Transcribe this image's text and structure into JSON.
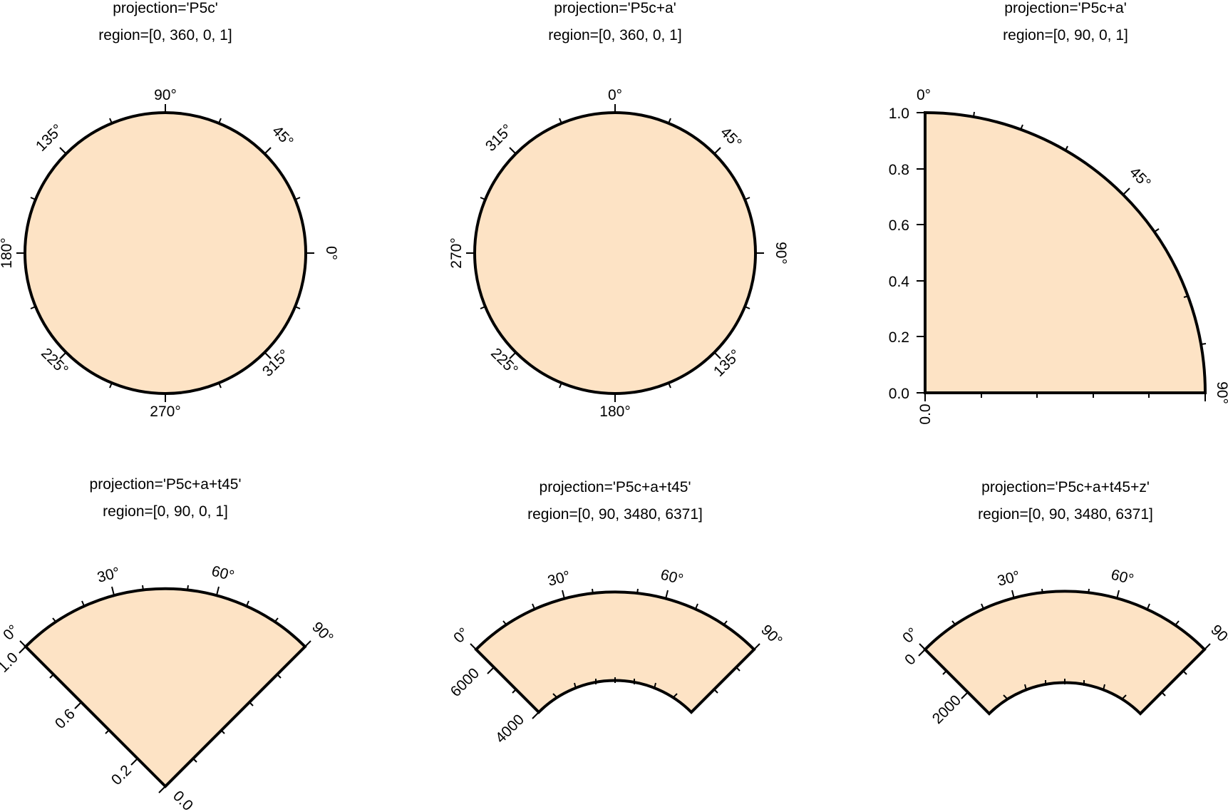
{
  "fill_color": "#fde3c5",
  "frame_color": "#000000",
  "panels": [
    {
      "title_lines": [
        "projection='P5c'",
        "region=[0, 360, 0, 1]"
      ],
      "angle_labels": [
        "0°",
        "45°",
        "90°",
        "135°",
        "180°",
        "225°",
        "270°",
        "315°"
      ],
      "radius_labels": []
    },
    {
      "title_lines": [
        "projection='P5c+a'",
        "region=[0, 360, 0, 1]"
      ],
      "angle_labels": [
        "0°",
        "45°",
        "90°",
        "135°",
        "180°",
        "225°",
        "270°",
        "315°"
      ],
      "radius_labels": []
    },
    {
      "title_lines": [
        "projection='P5c+a'",
        "region=[0, 90, 0, 1]"
      ],
      "angle_labels": [
        "0°",
        "45°",
        "90°"
      ],
      "radius_labels": [
        "0.0",
        "0.2",
        "0.4",
        "0.6",
        "0.8",
        "1.0"
      ]
    },
    {
      "title_lines": [
        "projection='P5c+a+t45'",
        "region=[0, 90, 0, 1]"
      ],
      "angle_labels": [
        "0°",
        "30°",
        "60°",
        "90°"
      ],
      "radius_labels": [
        "0.0",
        "0.2",
        "0.6",
        "1.0"
      ]
    },
    {
      "title_lines": [
        "projection='P5c+a+t45'",
        "region=[0, 90, 3480, 6371]"
      ],
      "angle_labels": [
        "0°",
        "30°",
        "60°",
        "90°"
      ],
      "radius_labels": [
        "4000",
        "6000"
      ]
    },
    {
      "title_lines": [
        "projection='P5c+a+t45+z'",
        "region=[0, 90, 3480, 6371]"
      ],
      "angle_labels": [
        "0°",
        "30°",
        "60°",
        "90°"
      ],
      "radius_labels": [
        "2000",
        "0"
      ]
    }
  ]
}
